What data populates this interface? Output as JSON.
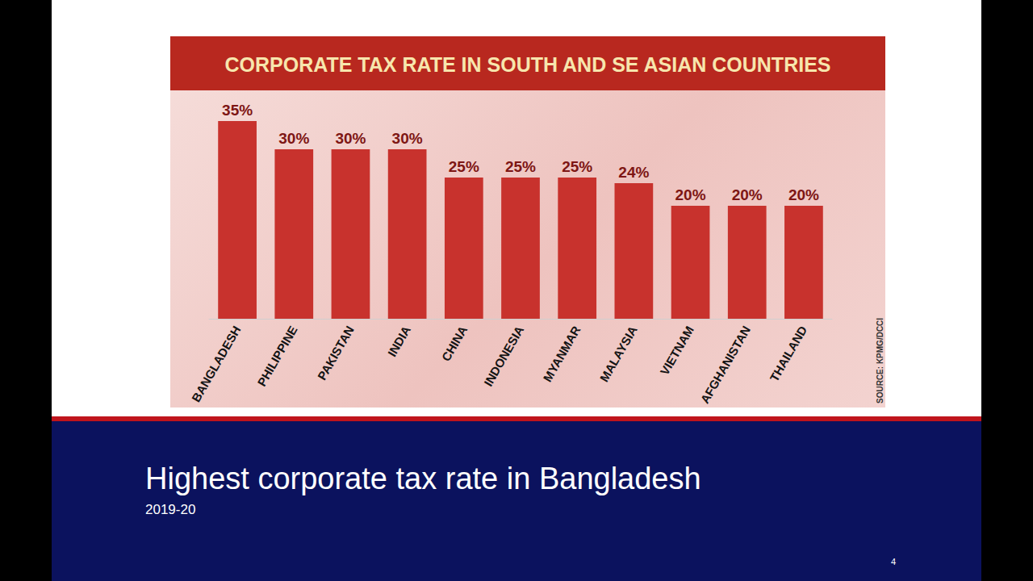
{
  "chart_data": {
    "type": "bar",
    "title": "CORPORATE TAX RATE IN SOUTH AND SE ASIAN COUNTRIES",
    "categories": [
      "BANGLADESH",
      "PHILIPPINE",
      "PAKISTAN",
      "INDIA",
      "CHINA",
      "INDONESIA",
      "MYANMAR",
      "MALAYSIA",
      "VIETNAM",
      "AFGHANISTAN",
      "THAILAND"
    ],
    "values": [
      35,
      30,
      30,
      30,
      25,
      25,
      25,
      24,
      20,
      20,
      20
    ],
    "value_labels": [
      "35%",
      "30%",
      "30%",
      "30%",
      "25%",
      "25%",
      "25%",
      "24%",
      "20%",
      "20%",
      "20%"
    ],
    "color": "#c8322d",
    "ylim": [
      0,
      40
    ],
    "data_labels": true,
    "tick_labels": "x",
    "grid": false,
    "annotations": [
      "SOURCE: KPMG/DCCI"
    ]
  },
  "slide": {
    "heading": "Highest corporate tax rate in Bangladesh",
    "subheading": "2019-20",
    "page": 4
  }
}
